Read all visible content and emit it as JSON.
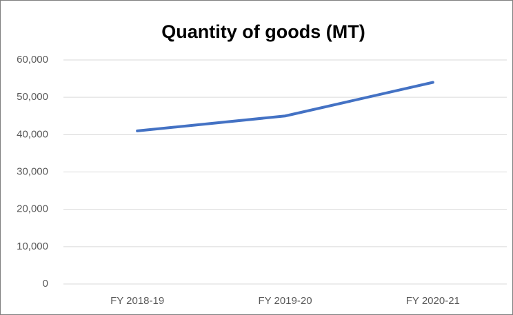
{
  "chart_data": {
    "type": "line",
    "title": "Quantity of goods (MT)",
    "categories": [
      "FY 2018-19",
      "FY 2019-20",
      "FY 2020-21"
    ],
    "series": [
      {
        "name": "Quantity of goods (MT)",
        "color": "#4472c4",
        "values": [
          41000,
          45000,
          54000
        ]
      }
    ],
    "ylim": [
      0,
      60000
    ],
    "yticks": [
      0,
      {
        "value": 10000,
        "label": "10,000"
      },
      {
        "value": 20000,
        "label": "20,000"
      },
      {
        "value": 30000,
        "label": "30,000"
      },
      {
        "value": 40000,
        "label": "40,000"
      },
      {
        "value": 50000,
        "label": "50,000"
      },
      {
        "value": 60000,
        "label": "60,000"
      }
    ],
    "grid": true
  }
}
